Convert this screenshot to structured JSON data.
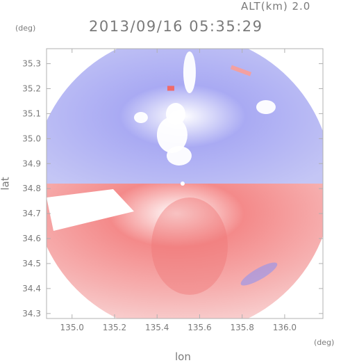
{
  "header": {
    "altitude_label": "ALT(km) 2.0",
    "timestamp": "2013/09/16 05:35:29"
  },
  "axes": {
    "y_unit": "(deg)",
    "x_unit": "(deg)",
    "xlabel": "lon",
    "ylabel": "lat"
  },
  "colors": {
    "toward": "#7b7ff0",
    "away": "#f07b7b",
    "frame": "#b0b0b0"
  },
  "chart_data": {
    "type": "heatmap",
    "title": "2013/09/16 05:35:29",
    "subtitle": "ALT(km) 2.0",
    "xlabel": "lon",
    "ylabel": "lat",
    "xlim": [
      134.88,
      136.18
    ],
    "ylim": [
      34.28,
      35.36
    ],
    "xticks": [
      135.0,
      135.2,
      135.4,
      135.6,
      135.8,
      136.0
    ],
    "xtick_labels": [
      "135.0",
      "135.2",
      "135.4",
      "135.6",
      "135.8",
      "136.0"
    ],
    "yticks": [
      34.3,
      34.4,
      34.5,
      34.6,
      34.7,
      34.8,
      34.9,
      35.0,
      35.1,
      35.2,
      35.3
    ],
    "ytick_labels": [
      "34.3",
      "34.4",
      "34.5",
      "34.6",
      "34.7",
      "34.8",
      "34.9",
      "35.0",
      "35.1",
      "35.2",
      "35.3"
    ],
    "radar_center": {
      "lon": 135.52,
      "lat": 34.82
    },
    "radar_range_deg": 0.6,
    "grid": false
  }
}
